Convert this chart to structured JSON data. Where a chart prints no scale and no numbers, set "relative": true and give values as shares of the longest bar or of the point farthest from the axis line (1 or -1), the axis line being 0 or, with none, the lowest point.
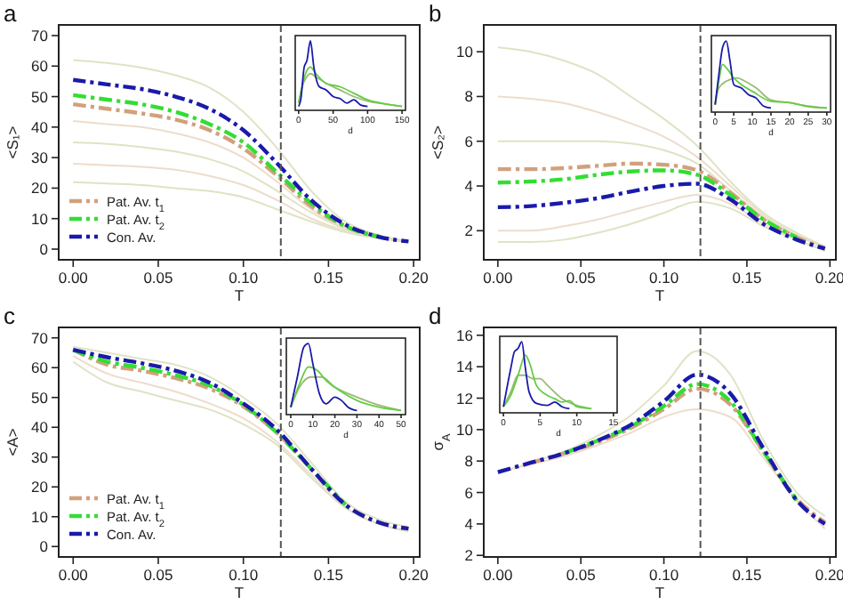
{
  "chart_data": [
    {
      "type": "line",
      "title": "a",
      "xlabel": "T",
      "ylabel": "<S₁>",
      "xlim": [
        -0.0085,
        0.2036
      ],
      "ylim": [
        -3.5,
        73.5
      ],
      "xticks": [
        {
          "value": 0,
          "label": "0.00"
        },
        0.05,
        {
          "value": 0.1,
          "label": "0.10"
        },
        0.15,
        {
          "value": 0.2,
          "label": "0.20"
        }
      ],
      "yticks": [
        0,
        10,
        20,
        30,
        40,
        50,
        60,
        70
      ],
      "legend": "bottom left",
      "ref_lines": [
        {
          "axis": "x",
          "value": 0.122,
          "color": "#555555",
          "line_style": "dashed"
        }
      ],
      "x": [
        0,
        0.02,
        0.04,
        0.06,
        0.08,
        0.1,
        0.12,
        0.14,
        0.16,
        0.18,
        0.197
      ],
      "series": [
        {
          "color": "#dfe3c4",
          "line_style": "solid",
          "values": [
            62,
            61,
            59.5,
            57,
            53,
            45,
            33,
            19,
            9,
            4.5,
            2.5
          ]
        },
        {
          "color": "#eedccb",
          "line_style": "solid",
          "values": [
            42,
            41,
            40,
            38,
            35,
            30,
            22,
            13,
            7,
            4,
            2.5
          ]
        },
        {
          "color": "#dfe3c4",
          "line_style": "solid",
          "values": [
            35,
            34.5,
            33.5,
            32,
            29.5,
            25.5,
            19,
            12,
            6.5,
            3.5,
            2.5
          ]
        },
        {
          "color": "#eedccb",
          "line_style": "solid",
          "values": [
            28,
            27.5,
            27,
            26,
            24,
            21,
            16,
            10,
            6,
            3.5,
            2.5
          ]
        },
        {
          "color": "#dfe3c4",
          "line_style": "solid",
          "values": [
            22,
            21.5,
            21,
            20,
            19,
            17,
            13,
            9,
            5.5,
            3.5,
            2.5
          ]
        },
        {
          "name": "Pat. Av. t$_{1}$",
          "color": "#d2a07c",
          "line_style": "dashed",
          "values": [
            47.5,
            46,
            44.5,
            42.5,
            39,
            33,
            24,
            14,
            7.5,
            4,
            null
          ]
        },
        {
          "name": "Pat. Av. t$_{2}$",
          "color": "#33dd33",
          "line_style": "dashed",
          "values": [
            50.5,
            49,
            47.5,
            45,
            41,
            35,
            25,
            15,
            7.5,
            4,
            null
          ]
        },
        {
          "name": "Con. Av.",
          "color": "#1a1aaa",
          "line_style": "dashed",
          "values": [
            55.5,
            54,
            52.5,
            50,
            46,
            39,
            28,
            16,
            8,
            4,
            2.5
          ]
        }
      ]
    },
    {
      "type": "line",
      "relative": true,
      "xlabel": "d",
      "xlim": [
        -5,
        155
      ],
      "xticks": [
        0,
        50,
        100,
        150
      ],
      "series": [
        {
          "color": "#99bb77",
          "x": [
            0,
            5,
            10,
            17,
            25,
            40,
            60,
            80,
            100,
            130,
            150
          ],
          "values": [
            0.05,
            0.3,
            0.42,
            0.5,
            0.45,
            0.35,
            0.25,
            0.15,
            0.08,
            0.03,
            0
          ]
        },
        {
          "color": "#66cc44",
          "x": [
            0,
            5,
            10,
            17,
            25,
            40,
            60,
            80,
            100,
            130,
            150
          ],
          "values": [
            0.05,
            0.3,
            0.5,
            0.6,
            0.5,
            0.35,
            0.3,
            0.2,
            0.1,
            0.03,
            0
          ]
        },
        {
          "color": "#1a1aaa",
          "x": [
            0,
            3,
            8,
            12,
            17,
            22,
            30,
            40,
            50,
            60,
            70,
            80,
            90,
            100
          ],
          "values": [
            0,
            0.1,
            0.6,
            0.7,
            1,
            0.6,
            0.3,
            0.25,
            0.15,
            0.12,
            0.05,
            0.1,
            0.02,
            0
          ]
        }
      ]
    },
    {
      "type": "line",
      "title": "b",
      "xlabel": "T",
      "ylabel": "<S₂>",
      "xlim": [
        -0.0085,
        0.2036
      ],
      "ylim": [
        0.7,
        11.2
      ],
      "xticks": [
        {
          "value": 0,
          "label": "0.00"
        },
        0.05,
        {
          "value": 0.1,
          "label": "0.10"
        },
        0.15,
        {
          "value": 0.2,
          "label": "0.20"
        }
      ],
      "yticks": [
        2,
        4,
        6,
        8,
        10
      ],
      "ref_lines": [
        {
          "axis": "x",
          "value": 0.122,
          "color": "#555555",
          "line_style": "dashed"
        }
      ],
      "x": [
        0,
        0.02,
        0.04,
        0.06,
        0.08,
        0.1,
        0.12,
        0.14,
        0.16,
        0.18,
        0.197
      ],
      "series": [
        {
          "color": "#dfe3c4",
          "line_style": "solid",
          "values": [
            10.2,
            10,
            9.6,
            9,
            8,
            7,
            5.8,
            4.2,
            2.8,
            1.9,
            1.3
          ]
        },
        {
          "color": "#eedccb",
          "line_style": "solid",
          "values": [
            8,
            7.9,
            7.7,
            7.3,
            6.8,
            6.2,
            5.3,
            4,
            2.7,
            1.8,
            1.3
          ]
        },
        {
          "color": "#dfe3c4",
          "line_style": "solid",
          "values": [
            6,
            6,
            6,
            6,
            5.9,
            5.6,
            5,
            3.8,
            2.6,
            1.8,
            1.2
          ]
        },
        {
          "color": "#eedccb",
          "line_style": "solid",
          "values": [
            2,
            2,
            2.2,
            2.5,
            2.9,
            3.3,
            3.6,
            3.2,
            2.3,
            1.6,
            1.1
          ]
        },
        {
          "color": "#dfe3c4",
          "line_style": "solid",
          "values": [
            1.5,
            1.5,
            1.6,
            1.9,
            2.3,
            2.8,
            3.3,
            3,
            2.2,
            1.6,
            1.1
          ]
        },
        {
          "color": "#d2a07c",
          "line_style": "dashed",
          "values": [
            4.75,
            4.75,
            4.8,
            4.9,
            5,
            4.95,
            4.7,
            3.7,
            2.5,
            1.7,
            1.2
          ]
        },
        {
          "color": "#33dd33",
          "line_style": "dashed",
          "values": [
            4.15,
            4.2,
            4.3,
            4.5,
            4.65,
            4.7,
            4.5,
            3.6,
            2.5,
            1.7,
            null
          ]
        },
        {
          "color": "#1a1aaa",
          "line_style": "dashed",
          "values": [
            3.05,
            3.1,
            3.25,
            3.45,
            3.75,
            4,
            4.1,
            3.4,
            2.3,
            1.6,
            1.2
          ]
        }
      ]
    },
    {
      "type": "line",
      "relative": true,
      "xlabel": "d",
      "xlim": [
        -1,
        31
      ],
      "xticks": [
        0,
        5,
        10,
        15,
        20,
        25,
        30
      ],
      "series": [
        {
          "color": "#99bb77",
          "x": [
            0,
            1,
            3,
            6,
            8,
            11,
            15,
            20,
            25,
            30
          ],
          "values": [
            0.05,
            0.3,
            0.4,
            0.45,
            0.4,
            0.3,
            0.12,
            0.08,
            0.03,
            0
          ]
        },
        {
          "color": "#66cc44",
          "x": [
            0,
            1,
            2,
            3,
            5,
            7,
            10,
            15,
            20,
            25,
            30
          ],
          "values": [
            0.05,
            0.4,
            0.65,
            0.6,
            0.45,
            0.35,
            0.25,
            0.1,
            0.08,
            0.02,
            0
          ]
        },
        {
          "color": "#1a1aaa",
          "x": [
            0,
            1,
            2,
            3,
            4,
            5,
            7,
            9,
            11,
            13,
            15
          ],
          "values": [
            0.05,
            0.5,
            0.9,
            1,
            0.7,
            0.35,
            0.3,
            0.2,
            0.15,
            0.03,
            0
          ]
        }
      ]
    },
    {
      "type": "line",
      "title": "c",
      "xlabel": "T",
      "ylabel": "<A>",
      "xlim": [
        -0.0085,
        0.2036
      ],
      "ylim": [
        -3.5,
        73.5
      ],
      "xticks": [
        {
          "value": 0,
          "label": "0.00"
        },
        0.05,
        {
          "value": 0.1,
          "label": "0.10"
        },
        0.15,
        {
          "value": 0.2,
          "label": "0.20"
        }
      ],
      "yticks": [
        0,
        10,
        20,
        30,
        40,
        50,
        60,
        70
      ],
      "legend": "bottom left",
      "ref_lines": [
        {
          "axis": "x",
          "value": 0.122,
          "color": "#555555",
          "line_style": "dashed"
        }
      ],
      "x": [
        0,
        0.02,
        0.04,
        0.06,
        0.08,
        0.1,
        0.12,
        0.14,
        0.16,
        0.18,
        0.197
      ],
      "series": [
        {
          "color": "#dfe3c4",
          "line_style": "solid",
          "values": [
            67,
            65,
            63,
            61,
            57,
            50,
            41,
            28,
            15,
            9,
            6.5
          ]
        },
        {
          "color": "#eedccb",
          "line_style": "solid",
          "values": [
            64,
            58,
            55,
            52,
            48,
            43,
            35,
            24,
            13,
            7.5,
            5.5
          ]
        },
        {
          "color": "#dfe3c4",
          "line_style": "solid",
          "values": [
            62,
            55,
            52,
            49,
            46,
            41,
            34,
            23,
            13,
            7.5,
            5
          ]
        },
        {
          "name": "Pat. Av. t$_{1}$",
          "color": "#d2a07c",
          "line_style": "dashed",
          "values": [
            66,
            61,
            59,
            56.5,
            53,
            47,
            38,
            26,
            14,
            8,
            6
          ]
        },
        {
          "name": "Pat. Av. t$_{2}$",
          "color": "#33dd33",
          "line_style": "dashed",
          "values": [
            66,
            62,
            60,
            57.5,
            54,
            47.5,
            38,
            26,
            14,
            null,
            null
          ]
        },
        {
          "name": "Con. Av.",
          "color": "#1a1aaa",
          "line_style": "dashed",
          "values": [
            66,
            63.5,
            61.5,
            59,
            55,
            48,
            39,
            26,
            14,
            8,
            6
          ]
        }
      ]
    },
    {
      "type": "line",
      "relative": true,
      "xlabel": "d",
      "xlim": [
        -2,
        52
      ],
      "xticks": [
        0,
        10,
        20,
        30,
        40,
        50
      ],
      "series": [
        {
          "color": "#99bb77",
          "x": [
            0,
            4,
            9,
            14,
            20,
            30,
            40,
            50
          ],
          "values": [
            0.05,
            0.35,
            0.5,
            0.5,
            0.35,
            0.2,
            0.08,
            0
          ]
        },
        {
          "color": "#66cc44",
          "x": [
            0,
            4,
            8,
            12,
            16,
            22,
            30,
            40,
            50
          ],
          "values": [
            0.05,
            0.4,
            0.65,
            0.6,
            0.45,
            0.3,
            0.15,
            0.05,
            0
          ]
        },
        {
          "color": "#1a1aaa",
          "x": [
            0,
            3,
            6,
            8,
            10,
            13,
            16,
            20,
            23,
            26,
            30
          ],
          "values": [
            0.05,
            0.5,
            0.95,
            1,
            0.7,
            0.25,
            0.1,
            0.2,
            0.15,
            0.05,
            0
          ]
        }
      ]
    },
    {
      "type": "line",
      "title": "d",
      "xlabel": "T",
      "ylabel": "σ$_{A}$",
      "xlim": [
        -0.0085,
        0.2036
      ],
      "ylim": [
        1.9,
        16.5
      ],
      "xticks": [
        {
          "value": 0,
          "label": "0.00"
        },
        0.05,
        {
          "value": 0.1,
          "label": "0.10"
        },
        0.15,
        {
          "value": 0.2,
          "label": "0.20"
        }
      ],
      "yticks": [
        2,
        4,
        6,
        8,
        10,
        12,
        14,
        16
      ],
      "ref_lines": [
        {
          "axis": "x",
          "value": 0.122,
          "color": "#555555",
          "line_style": "dashed"
        }
      ],
      "x": [
        0,
        0.02,
        0.04,
        0.06,
        0.08,
        0.1,
        0.12,
        0.14,
        0.16,
        0.18,
        0.197
      ],
      "series": [
        {
          "color": "#dfe3c4",
          "line_style": "solid",
          "values": [
            7.2,
            7.9,
            8.6,
            9.6,
            10.9,
            12.8,
            15,
            13.5,
            9.3,
            6,
            4.5
          ]
        },
        {
          "color": "#eedccb",
          "line_style": "solid",
          "values": [
            7.3,
            7.8,
            8.3,
            9,
            9.8,
            10.8,
            11.3,
            10.8,
            8.2,
            5.5,
            3.7
          ]
        },
        {
          "color": "#d2a07c",
          "line_style": "dashed",
          "values": [
            null,
            7.9,
            8.5,
            9.2,
            10.1,
            11.3,
            12.6,
            11.6,
            8.6,
            5.6,
            4.1
          ]
        },
        {
          "color": "#33dd33",
          "line_style": "dashed",
          "values": [
            null,
            null,
            8.5,
            9.3,
            10.2,
            11.5,
            12.9,
            11.8,
            8.6,
            5.5,
            null
          ]
        },
        {
          "color": "#1a1aaa",
          "line_style": "dashed",
          "values": [
            7.3,
            7.9,
            8.5,
            9.3,
            10.3,
            11.8,
            13.5,
            12.3,
            8.8,
            5.5,
            4
          ]
        }
      ]
    },
    {
      "type": "line",
      "relative": true,
      "xlabel": "d",
      "xlim": [
        -0.5,
        15.5
      ],
      "xticks": [
        0,
        5,
        10,
        15
      ],
      "series": [
        {
          "color": "#99bb77",
          "x": [
            0,
            1,
            2,
            3,
            4,
            5,
            6,
            8,
            10,
            12
          ],
          "values": [
            0.03,
            0.25,
            0.5,
            0.5,
            0.45,
            0.45,
            0.35,
            0.15,
            0.05,
            0
          ]
        },
        {
          "color": "#66cc44",
          "x": [
            0,
            1,
            2,
            3,
            3.5,
            4.5,
            6,
            7,
            8,
            9,
            10,
            12
          ],
          "values": [
            0.03,
            0.2,
            0.5,
            0.8,
            0.7,
            0.35,
            0.2,
            0.15,
            0.1,
            0.12,
            0.03,
            0
          ]
        },
        {
          "color": "#1a1aaa",
          "x": [
            0,
            1,
            1.5,
            2,
            2.5,
            3,
            3.5,
            4.5,
            6,
            7,
            8,
            9
          ],
          "values": [
            0.03,
            0.6,
            0.85,
            0.9,
            1,
            0.6,
            0.25,
            0.08,
            0.05,
            0.1,
            0.03,
            0
          ]
        }
      ]
    }
  ]
}
